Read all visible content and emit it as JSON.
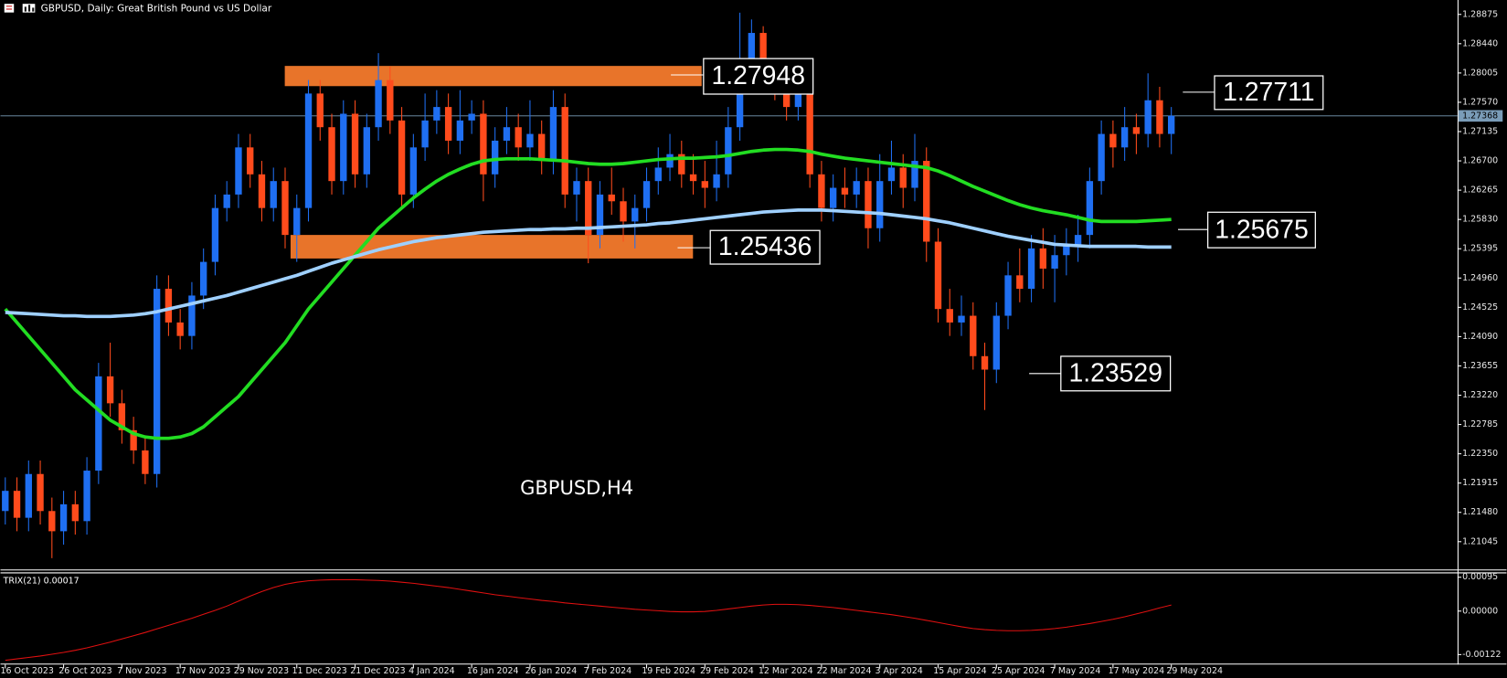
{
  "chart_data": [
    {
      "type": "candlestick",
      "title": "GBPUSD, Daily:  Great British Pound vs US Dollar",
      "watermark": "GBPUSD,H4",
      "categories": [
        "16 Oct 2023",
        null,
        null,
        null,
        null,
        "26 Oct 2023",
        null,
        null,
        null,
        null,
        "7 Nov 2023",
        null,
        null,
        null,
        null,
        "17 Nov 2023",
        null,
        null,
        null,
        null,
        "29 Nov 2023",
        null,
        null,
        null,
        null,
        "11 Dec 2023",
        null,
        null,
        null,
        null,
        "21 Dec 2023",
        null,
        null,
        null,
        null,
        "4 Jan 2024",
        null,
        null,
        null,
        null,
        "16 Jan 2024",
        null,
        null,
        null,
        null,
        "26 Jan 2024",
        null,
        null,
        null,
        null,
        "7 Feb 2024",
        null,
        null,
        null,
        null,
        "19 Feb 2024",
        null,
        null,
        null,
        null,
        "29 Feb 2024",
        null,
        null,
        null,
        null,
        "12 Mar 2024",
        null,
        null,
        null,
        null,
        "22 Mar 2024",
        null,
        null,
        null,
        null,
        "3 Apr 2024",
        null,
        null,
        null,
        null,
        "15 Apr 2024",
        null,
        null,
        null,
        null,
        "25 Apr 2024",
        null,
        null,
        null,
        null,
        "7 May 2024",
        null,
        null,
        null,
        null,
        "17 May 2024",
        null,
        null,
        null,
        null,
        "29 May 2024"
      ],
      "open": [
        1.215,
        1.218,
        1.214,
        1.2205,
        1.215,
        1.212,
        1.216,
        1.2135,
        1.221,
        1.235,
        1.231,
        1.227,
        1.224,
        1.2205,
        1.248,
        1.243,
        1.241,
        1.247,
        1.252,
        1.26,
        1.262,
        1.269,
        1.265,
        1.26,
        1.264,
        1.256,
        1.26,
        1.277,
        1.272,
        1.264,
        1.274,
        1.265,
        1.272,
        1.279,
        1.273,
        1.262,
        1.269,
        1.273,
        1.275,
        1.27,
        1.273,
        1.274,
        1.265,
        1.27,
        1.272,
        1.269,
        1.271,
        1.267,
        1.275,
        1.262,
        1.264,
        1.256,
        1.262,
        1.261,
        1.258,
        1.26,
        1.264,
        1.266,
        1.268,
        1.265,
        1.264,
        1.263,
        1.265,
        1.272,
        1.282,
        1.286,
        1.28,
        1.278,
        1.275,
        1.279,
        1.265,
        1.26,
        1.263,
        1.262,
        1.264,
        1.257,
        1.264,
        1.266,
        1.263,
        1.267,
        1.255,
        1.245,
        1.243,
        1.244,
        1.238,
        1.236,
        1.244,
        1.25,
        1.248,
        1.254,
        1.251,
        1.253,
        1.2545,
        1.256,
        1.264,
        1.271,
        1.269,
        1.272,
        1.271,
        1.276,
        1.271
      ],
      "high": [
        1.22,
        1.22,
        1.2225,
        1.2225,
        1.217,
        1.218,
        1.218,
        1.223,
        1.237,
        1.24,
        1.233,
        1.229,
        1.226,
        1.25,
        1.25,
        1.245,
        1.249,
        1.254,
        1.262,
        1.264,
        1.271,
        1.271,
        1.267,
        1.266,
        1.266,
        1.262,
        1.279,
        1.279,
        1.274,
        1.276,
        1.276,
        1.274,
        1.283,
        1.281,
        1.275,
        1.271,
        1.277,
        1.2775,
        1.277,
        1.2775,
        1.276,
        1.276,
        1.272,
        1.275,
        1.274,
        1.276,
        1.273,
        1.2775,
        1.277,
        1.266,
        1.266,
        1.264,
        1.266,
        1.263,
        1.262,
        1.266,
        1.269,
        1.271,
        1.27,
        1.268,
        1.267,
        1.27,
        1.275,
        1.289,
        1.288,
        1.287,
        1.282,
        1.28,
        1.281,
        1.281,
        1.267,
        1.265,
        1.266,
        1.266,
        1.266,
        1.268,
        1.27,
        1.268,
        1.271,
        1.269,
        1.257,
        1.248,
        1.247,
        1.246,
        1.24,
        1.246,
        1.252,
        1.254,
        1.256,
        1.257,
        1.256,
        1.257,
        1.259,
        1.266,
        1.273,
        1.273,
        1.275,
        1.274,
        1.28,
        1.278,
        1.275
      ],
      "low": [
        1.213,
        1.212,
        1.212,
        1.213,
        1.208,
        1.21,
        1.2115,
        1.2115,
        1.219,
        1.229,
        1.225,
        1.222,
        1.219,
        1.2185,
        1.241,
        1.239,
        1.239,
        1.245,
        1.25,
        1.258,
        1.26,
        1.263,
        1.258,
        1.258,
        1.254,
        1.252,
        1.258,
        1.27,
        1.262,
        1.262,
        1.263,
        1.263,
        1.27,
        1.271,
        1.26,
        1.26,
        1.267,
        1.271,
        1.268,
        1.268,
        1.271,
        1.261,
        1.263,
        1.268,
        1.267,
        1.267,
        1.265,
        1.265,
        1.26,
        1.258,
        1.2518,
        1.254,
        1.259,
        1.255,
        1.254,
        1.258,
        1.262,
        1.264,
        1.263,
        1.262,
        1.26,
        1.261,
        1.263,
        1.27,
        1.28,
        1.278,
        1.276,
        1.273,
        1.273,
        1.263,
        1.258,
        1.258,
        1.26,
        1.26,
        1.254,
        1.255,
        1.262,
        1.26,
        1.261,
        1.252,
        1.243,
        1.241,
        1.241,
        1.236,
        1.23,
        1.234,
        1.242,
        1.246,
        1.246,
        1.248,
        1.246,
        1.25,
        1.252,
        1.254,
        1.262,
        1.266,
        1.267,
        1.268,
        1.269,
        1.269,
        1.268
      ],
      "close": [
        1.218,
        1.214,
        1.2205,
        1.215,
        1.212,
        1.216,
        1.2135,
        1.221,
        1.235,
        1.231,
        1.227,
        1.224,
        1.2205,
        1.248,
        1.243,
        1.241,
        1.247,
        1.252,
        1.26,
        1.262,
        1.269,
        1.265,
        1.26,
        1.264,
        1.256,
        1.26,
        1.277,
        1.272,
        1.264,
        1.274,
        1.265,
        1.272,
        1.279,
        1.273,
        1.262,
        1.269,
        1.273,
        1.275,
        1.27,
        1.273,
        1.274,
        1.265,
        1.27,
        1.272,
        1.269,
        1.271,
        1.267,
        1.275,
        1.262,
        1.264,
        1.256,
        1.262,
        1.261,
        1.258,
        1.26,
        1.264,
        1.266,
        1.268,
        1.265,
        1.264,
        1.263,
        1.265,
        1.272,
        1.282,
        1.286,
        1.28,
        1.278,
        1.275,
        1.279,
        1.265,
        1.26,
        1.263,
        1.262,
        1.264,
        1.257,
        1.264,
        1.266,
        1.263,
        1.267,
        1.255,
        1.245,
        1.243,
        1.244,
        1.238,
        1.236,
        1.244,
        1.25,
        1.248,
        1.254,
        1.251,
        1.253,
        1.2545,
        1.256,
        1.264,
        1.271,
        1.269,
        1.272,
        1.271,
        1.276,
        1.271,
        1.2737
      ],
      "up_color": "#1f6ff2",
      "down_color": "#ff4b1c",
      "moving_averages": [
        {
          "color": "#22dd22",
          "values": [
            1.245,
            1.243,
            1.241,
            1.239,
            1.237,
            1.235,
            1.233,
            1.2315,
            1.23,
            1.2285,
            1.2275,
            1.2265,
            1.226,
            1.2258,
            1.2258,
            1.226,
            1.2265,
            1.2275,
            1.229,
            1.2305,
            1.232,
            1.234,
            1.236,
            1.238,
            1.24,
            1.2425,
            1.245,
            1.247,
            1.249,
            1.251,
            1.253,
            1.255,
            1.257,
            1.2585,
            1.26,
            1.2615,
            1.2628,
            1.264,
            1.265,
            1.2658,
            1.2665,
            1.267,
            1.2672,
            1.2673,
            1.2673,
            1.2673,
            1.2672,
            1.2671,
            1.267,
            1.2668,
            1.2666,
            1.2665,
            1.2665,
            1.2666,
            1.2668,
            1.267,
            1.2672,
            1.2673,
            1.2674,
            1.2674,
            1.2675,
            1.2676,
            1.2678,
            1.2681,
            1.2684,
            1.2686,
            1.2687,
            1.2687,
            1.2686,
            1.2684,
            1.268,
            1.2677,
            1.2674,
            1.2672,
            1.267,
            1.2668,
            1.2666,
            1.2664,
            1.2662,
            1.266,
            1.2655,
            1.2648,
            1.264,
            1.2632,
            1.2625,
            1.2618,
            1.2611,
            1.2605,
            1.26,
            1.2596,
            1.2593,
            1.259,
            1.2586,
            1.2582,
            1.258,
            1.258,
            1.258,
            1.258,
            1.2581,
            1.2582,
            1.2583
          ]
        },
        {
          "color": "#9fd0ff",
          "values": [
            1.2445,
            1.2444,
            1.2443,
            1.2442,
            1.2441,
            1.244,
            1.244,
            1.2439,
            1.2439,
            1.2439,
            1.244,
            1.2441,
            1.2443,
            1.2446,
            1.245,
            1.2454,
            1.2458,
            1.2462,
            1.2466,
            1.247,
            1.2475,
            1.248,
            1.2485,
            1.249,
            1.2495,
            1.25,
            1.2506,
            1.2512,
            1.2518,
            1.2523,
            1.2528,
            1.2533,
            1.2538,
            1.2542,
            1.2546,
            1.255,
            1.2553,
            1.2556,
            1.2558,
            1.256,
            1.2562,
            1.2564,
            1.2565,
            1.2566,
            1.2567,
            1.2568,
            1.2568,
            1.2569,
            1.2569,
            1.257,
            1.257,
            1.2571,
            1.2572,
            1.2573,
            1.2574,
            1.2575,
            1.2577,
            1.2578,
            1.258,
            1.2582,
            1.2584,
            1.2586,
            1.2588,
            1.259,
            1.2592,
            1.2594,
            1.2595,
            1.2596,
            1.2597,
            1.2597,
            1.2597,
            1.2596,
            1.2595,
            1.2594,
            1.2593,
            1.2592,
            1.259,
            1.2588,
            1.2586,
            1.2584,
            1.2581,
            1.2578,
            1.2574,
            1.257,
            1.2566,
            1.2562,
            1.2558,
            1.2555,
            1.2552,
            1.2549,
            1.2546,
            1.2545,
            1.2544,
            1.2543,
            1.2543,
            1.2543,
            1.2543,
            1.2543,
            1.2542,
            1.2542,
            1.2542
          ]
        }
      ],
      "zones": [
        {
          "top": 1.2811,
          "bottom": 1.2781,
          "color": "#e8742a"
        },
        {
          "top": 1.256,
          "bottom": 1.2525,
          "color": "#e8742a"
        }
      ],
      "annotations": [
        {
          "text": "1.27948"
        },
        {
          "text": "1.25436"
        },
        {
          "text": "1.27711"
        },
        {
          "text": "1.25675"
        },
        {
          "text": "1.23529"
        }
      ],
      "last_price": 1.27368,
      "ylim": [
        1.20632,
        1.29089
      ],
      "yticks": [
        1.28875,
        {
          "value": 1.2844,
          "label": "1.28440"
        },
        1.28005,
        {
          "value": 1.2757,
          "label": "1.27570"
        },
        1.27135,
        {
          "value": 1.267,
          "label": "1.26700"
        },
        1.26265,
        {
          "value": 1.2583,
          "label": "1.25830"
        },
        1.25395,
        {
          "value": 1.2496,
          "label": "1.24960"
        },
        1.24525,
        {
          "value": 1.2409,
          "label": "1.24090"
        },
        1.23655,
        {
          "value": 1.2322,
          "label": "1.23220"
        },
        1.22785,
        {
          "value": 1.2235,
          "label": "1.22350"
        },
        1.21915,
        {
          "value": 1.2148,
          "label": "1.21480"
        },
        1.21045
      ]
    },
    {
      "type": "line",
      "title": "TRIX(21) 0.00017",
      "color": "#e01010",
      "values": [
        -0.00138,
        -0.00134,
        -0.0013,
        -0.00126,
        -0.00121,
        -0.00116,
        -0.0011,
        -0.00103,
        -0.00095,
        -0.00087,
        -0.00078,
        -0.00069,
        -0.0006,
        -0.0005,
        -0.0004,
        -0.0003,
        -0.0002,
        -9e-05,
        2e-05,
        0.00014,
        0.00028,
        0.00042,
        0.00055,
        0.00066,
        0.00075,
        0.00081,
        0.00085,
        0.00087,
        0.00088,
        0.00088,
        0.00088,
        0.00087,
        0.00086,
        0.00084,
        0.00081,
        0.00078,
        0.00074,
        0.0007,
        0.00066,
        0.00061,
        0.00056,
        0.00051,
        0.00046,
        0.00042,
        0.00038,
        0.00034,
        0.0003,
        0.00027,
        0.00023,
        0.0002,
        0.00017,
        0.00014,
        0.00011,
        8e-05,
        5e-05,
        3e-05,
        1e-05,
        -1e-05,
        -2e-05,
        -2e-05,
        -1e-05,
        2e-05,
        6e-05,
        0.0001,
        0.00014,
        0.00017,
        0.00019,
        0.00019,
        0.00018,
        0.00016,
        0.00013,
        0.0001,
        6e-05,
        2e-05,
        -2e-05,
        -6e-05,
        -0.0001,
        -0.00015,
        -0.0002,
        -0.00026,
        -0.00032,
        -0.00038,
        -0.00044,
        -0.00049,
        -0.00052,
        -0.00054,
        -0.00055,
        -0.00055,
        -0.00054,
        -0.00052,
        -0.00049,
        -0.00045,
        -0.0004,
        -0.00035,
        -0.00029,
        -0.00023,
        -0.00016,
        -8e-05,
        0,
        9e-05,
        0.00017
      ],
      "ylim": [
        -0.0015,
        0.00106
      ],
      "yticks": [
        0.00095,
        {
          "value": 0,
          "label": "0.00000"
        },
        -0.00122
      ]
    }
  ]
}
